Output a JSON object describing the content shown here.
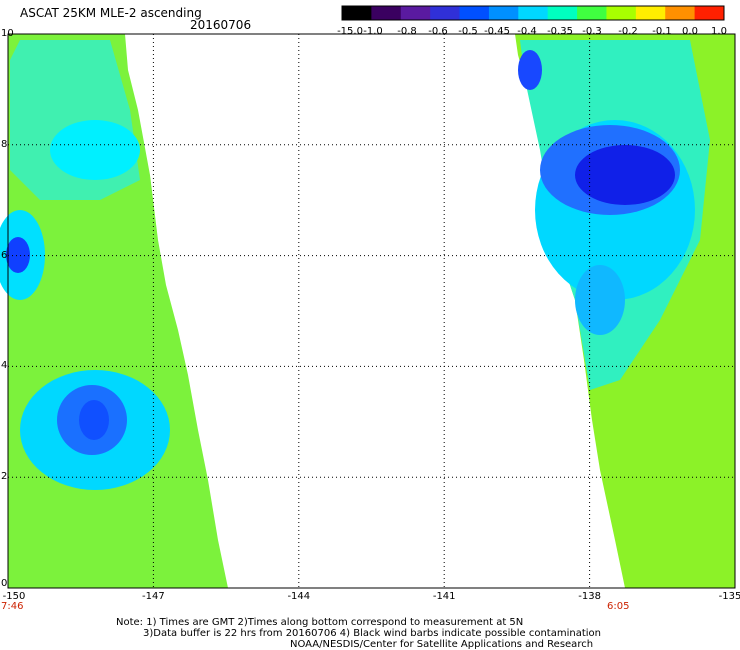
{
  "header": {
    "title": "ASCAT 25KM MLE-2 ascending",
    "date": "20160706"
  },
  "colorbar": {
    "labels": [
      "-15.0",
      "-1.0",
      "-0.8",
      "-0.6",
      "-0.5",
      "-0.45",
      "-0.4",
      "-0.35",
      "-0.3",
      "-0.2",
      "-0.1",
      "0.0",
      "1.0"
    ],
    "colors": [
      "#000000",
      "#3a0060",
      "#5a1aa0",
      "#3030d8",
      "#0050ff",
      "#0090ff",
      "#00d8ff",
      "#00ffc0",
      "#40ff40",
      "#a8ff00",
      "#ffee00",
      "#ff9000",
      "#ff2000"
    ]
  },
  "axes": {
    "y_labels": [
      "10",
      "8",
      "6",
      "4",
      "2",
      "0"
    ],
    "x_labels": [
      "-150",
      "-147",
      "-144",
      "-141",
      "-138",
      "-135"
    ],
    "x_range": [
      -150,
      -135
    ],
    "y_range": [
      0,
      10
    ]
  },
  "pass_times": {
    "left": "7:46",
    "right": "6:05"
  },
  "notes": {
    "line1": "Note: 1) Times are GMT 2)Times along bottom correspond to measurement at 5N",
    "line2": "3)Data buffer is 22 hrs from 20160706 4) Black wind barbs indicate possible contamination",
    "line3": "NOAA/NESDIS/Center for Satellite Applications and Research"
  }
}
